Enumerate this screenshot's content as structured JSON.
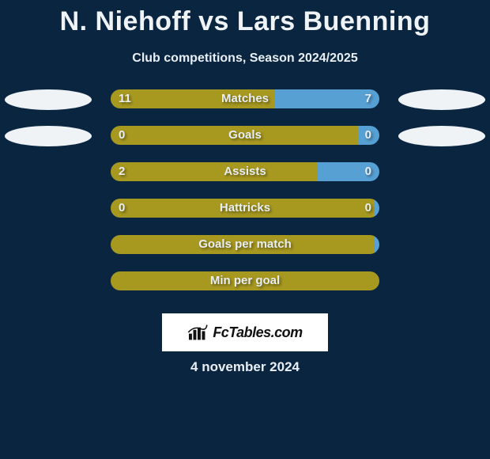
{
  "title": "N. Niehoff vs Lars Buenning",
  "subtitle": "Club competitions, Season 2024/2025",
  "date": "4 november 2024",
  "logo_text": "FcTables.com",
  "background_color": "#0a2540",
  "text_color": "#eff3f6",
  "ellipse_color": "#eff3f6",
  "stats": [
    {
      "label": "Matches",
      "left_val": "11",
      "right_val": "7",
      "left_color": "#a79920",
      "right_color": "#57a0d3",
      "left_pct": 61,
      "right_pct": 39,
      "show_ellipses": true
    },
    {
      "label": "Goals",
      "left_val": "0",
      "right_val": "0",
      "left_color": "#a79920",
      "right_color": "#57a0d3",
      "left_pct": 92,
      "right_pct": 8,
      "show_ellipses": true
    },
    {
      "label": "Assists",
      "left_val": "2",
      "right_val": "0",
      "left_color": "#a79920",
      "right_color": "#57a0d3",
      "left_pct": 77,
      "right_pct": 23,
      "show_ellipses": false
    },
    {
      "label": "Hattricks",
      "left_val": "0",
      "right_val": "0",
      "left_color": "#a79920",
      "right_color": "#57a0d3",
      "left_pct": 98,
      "right_pct": 2,
      "show_ellipses": false
    },
    {
      "label": "Goals per match",
      "left_val": "",
      "right_val": "",
      "left_color": "#a79920",
      "right_color": "#57a0d3",
      "left_pct": 98,
      "right_pct": 2,
      "show_ellipses": false
    },
    {
      "label": "Min per goal",
      "left_val": "",
      "right_val": "",
      "left_color": "#a79920",
      "right_color": "#57a0d3",
      "left_pct": 100,
      "right_pct": 0,
      "show_ellipses": false
    }
  ]
}
